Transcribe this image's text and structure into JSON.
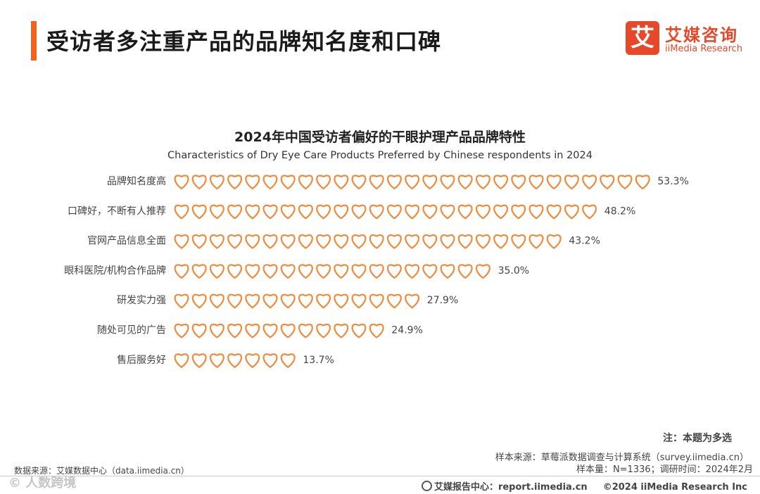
{
  "header": {
    "title": "受访者多注重产品的品牌知名度和口碑",
    "logo_mark": "艾",
    "logo_cn": "艾媒咨询",
    "logo_en": "iiMedia Research"
  },
  "chart_data": {
    "type": "bar",
    "style": "pictograph-hearts",
    "title": "2024年中国受访者偏好的干眼护理产品品牌特性",
    "subtitle": "Characteristics of Dry Eye Care Products Preferred by Chinese respondents in 2024",
    "categories": [
      "品牌知名度高",
      "口碑好，不断有人推荐",
      "官网产品信息全面",
      "眼科医院/机构合作品牌",
      "研发实力强",
      "随处可见的广告",
      "售后服务好"
    ],
    "values": [
      53.3,
      48.2,
      43.2,
      35.0,
      27.9,
      24.9,
      13.7
    ],
    "value_labels": [
      "53.3%",
      "48.2%",
      "43.2%",
      "35.0%",
      "27.9%",
      "24.9%",
      "13.7%"
    ],
    "unit": "%",
    "heart_color": "#f08a3c"
  },
  "notes": {
    "note": "注：本题为多选",
    "sample_source": "样本来源：草莓派数据调查与计算系统（survey.iimedia.cn）",
    "sample_size": "样本量：N=1336；调研时间：2024年2月",
    "data_source": "数据来源：艾媒数据中心（data.iimedia.cn）"
  },
  "footer": {
    "report_center": "艾媒报告中心：report.iimedia.cn",
    "copyright": "©2024  iiMedia Research  Inc",
    "watermark": "©  人数跨境"
  }
}
